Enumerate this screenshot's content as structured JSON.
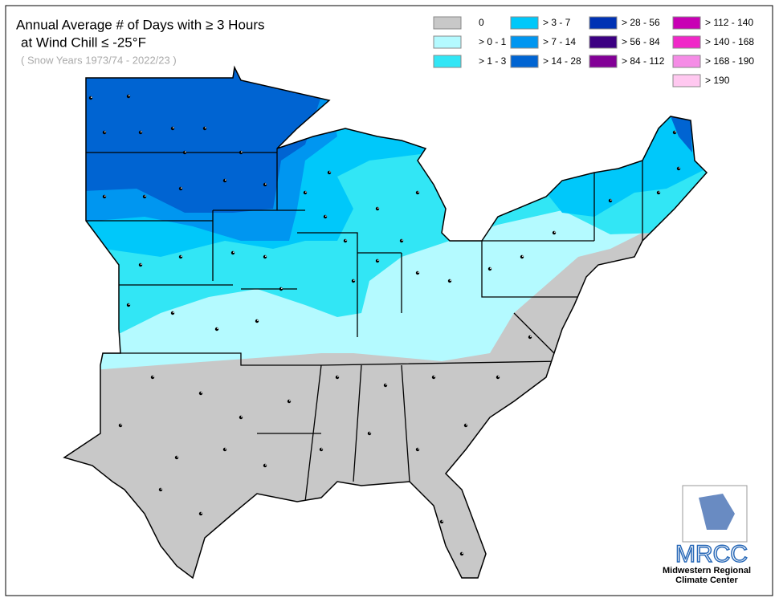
{
  "title": [
    "Annual Average # of Days with ≥ 3 Hours",
    "at Wind Chill ≤ -25°F"
  ],
  "subtitle": "( Snow Years 1973/74 - 2022/23 )",
  "legend": {
    "columns": [
      [
        {
          "label": "0",
          "color": "#c8c8c8"
        },
        {
          "label": "> 0 - 1",
          "color": "#b4faff"
        },
        {
          "label": "> 1 - 3",
          "color": "#32e6f5"
        }
      ],
      [
        {
          "label": "> 3 - 7",
          "color": "#00c8fa"
        },
        {
          "label": "> 7 - 14",
          "color": "#0096f0"
        },
        {
          "label": "> 14 - 28",
          "color": "#0064d2"
        }
      ],
      [
        {
          "label": "> 28 - 56",
          "color": "#0032b4"
        },
        {
          "label": "> 56 - 84",
          "color": "#3c0082"
        },
        {
          "label": "> 84 - 112",
          "color": "#820096"
        }
      ],
      [
        {
          "label": "> 112 - 140",
          "color": "#c800b4"
        },
        {
          "label": "> 140 - 168",
          "color": "#f028c8"
        },
        {
          "label": "> 168 - 190",
          "color": "#f58ce6"
        },
        {
          "label": "> 190",
          "color": "#ffc8f0"
        }
      ]
    ]
  },
  "logo": {
    "name": "MRCC",
    "line1": "Midwestern Regional",
    "line2": "Climate Center"
  }
}
